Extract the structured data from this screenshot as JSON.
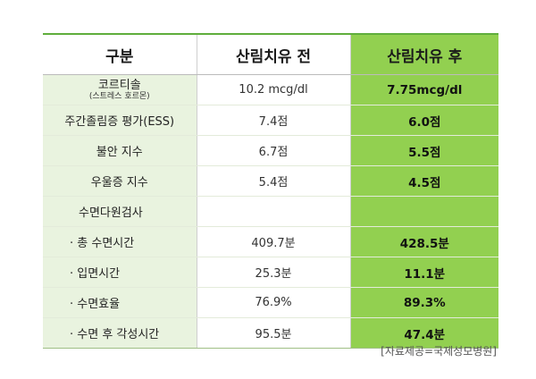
{
  "table": {
    "headers": [
      "구분",
      "산림치유 전",
      "산림치유 후"
    ],
    "rows": [
      {
        "label": "코르티솔",
        "sublabel": "(스트레스 호르몬)",
        "before": "10.2 mcg/dl",
        "after": "7.75mcg/dl"
      },
      {
        "label": "주간졸림증 평가(ESS)",
        "before": "7.4점",
        "after": "6.0점"
      },
      {
        "label": "불안 지수",
        "before": "6.7점",
        "after": "5.5점"
      },
      {
        "label": "우울증 지수",
        "before": "5.4점",
        "after": "4.5점"
      },
      {
        "label": "수면다원검사",
        "before": "",
        "after": ""
      },
      {
        "label": "· 총 수면시간",
        "before": "409.7분",
        "after": "428.5분"
      },
      {
        "label": "· 입면시간",
        "before": "25.3분",
        "after": "11.1분"
      },
      {
        "label": "· 수면효율",
        "before": "76.9%",
        "after": "89.3%"
      },
      {
        "label": "· 수면 후 각성시간",
        "before": "95.5분",
        "after": "47.4분"
      }
    ]
  },
  "source": "[자료제공=국제성모병원]",
  "colors": {
    "accent_green": "#92d050",
    "label_bg": "#e9f3df",
    "top_rule": "#5fae3c"
  }
}
